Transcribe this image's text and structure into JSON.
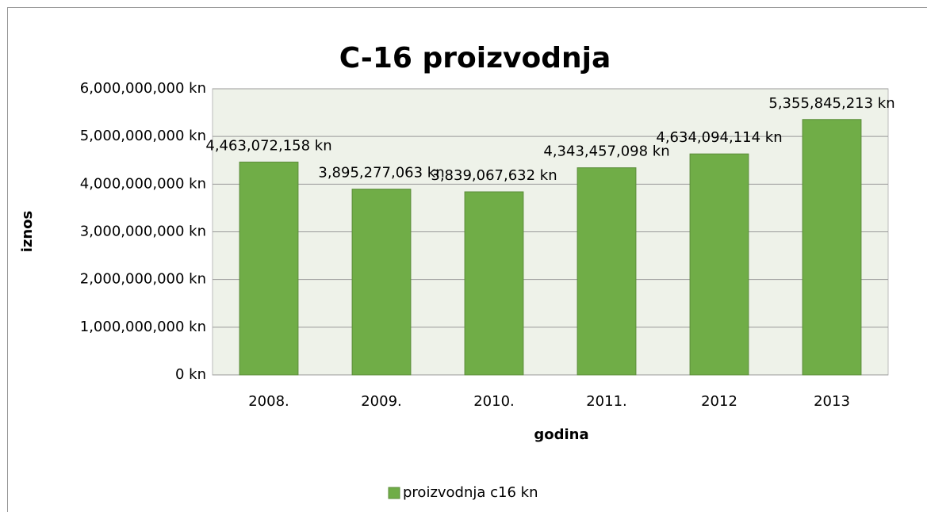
{
  "chart_data": {
    "type": "bar",
    "title": "C-16 proizvodnja",
    "x_label": "godina",
    "y_label": "iznos",
    "categories": [
      "2008.",
      "2009.",
      "2010.",
      "2011.",
      "2012",
      "2013"
    ],
    "series": [
      {
        "name": "proizvodnja c16 kn",
        "color": "#70ad47",
        "values": [
          4463072158,
          3895277063,
          3839067632,
          4343457098,
          4634094114,
          5355845213
        ],
        "value_labels": [
          "4,463,072,158 kn",
          "3,895,277,063 kn",
          "3,839,067,632 kn",
          "4,343,457,098 kn",
          "4,634,094,114 kn",
          "5,355,845,213 kn"
        ]
      }
    ],
    "ylim": [
      0,
      6000000000
    ],
    "yticks": [
      {
        "value": 0,
        "label": "0 kn"
      },
      {
        "value": 1000000000,
        "label": "1,000,000,000 kn"
      },
      {
        "value": 2000000000,
        "label": "2,000,000,000 kn"
      },
      {
        "value": 3000000000,
        "label": "3,000,000,000 kn"
      },
      {
        "value": 4000000000,
        "label": "4,000,000,000 kn"
      },
      {
        "value": 5000000000,
        "label": "5,000,000,000 kn"
      },
      {
        "value": 6000000000,
        "label": "6,000,000,000 kn"
      }
    ],
    "grid": true,
    "legend": "bottom"
  }
}
